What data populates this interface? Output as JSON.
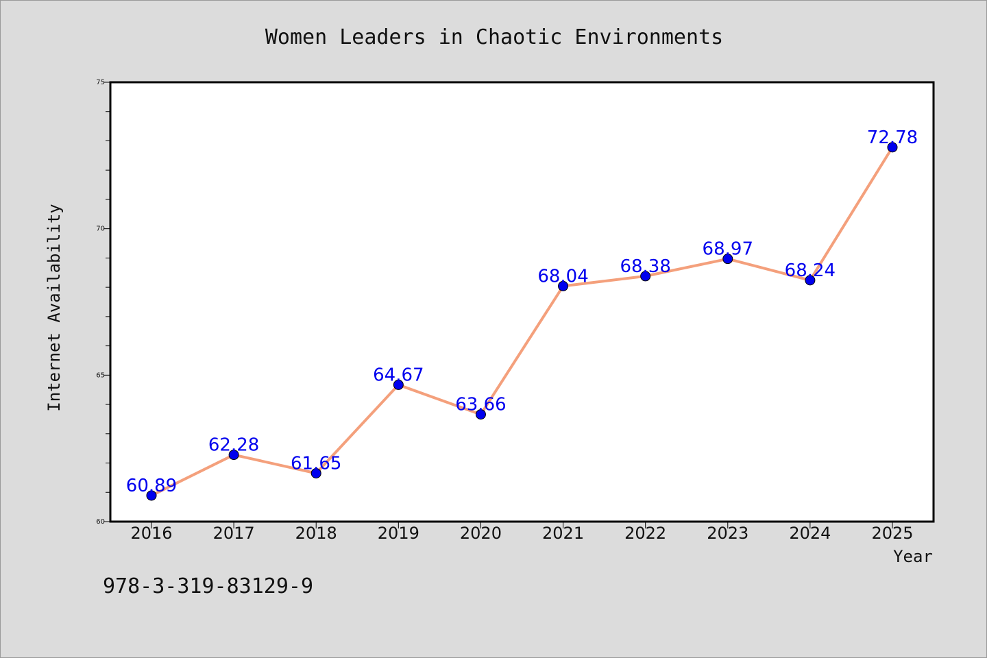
{
  "chart_data": {
    "type": "line",
    "title": "Women Leaders in Chaotic Environments",
    "xlabel": "Year",
    "ylabel": "Internet Availability",
    "categories": [
      "2016",
      "2017",
      "2018",
      "2019",
      "2020",
      "2021",
      "2022",
      "2023",
      "2024",
      "2025"
    ],
    "series": [
      {
        "values": [
          60.89,
          62.28,
          61.65,
          64.67,
          63.66,
          68.04,
          68.38,
          68.97,
          68.24,
          72.78
        ]
      }
    ],
    "data_labels": [
      "60.89",
      "62.28",
      "61.65",
      "64.67",
      "63.66",
      "68.04",
      "68.38",
      "68.97",
      "68.24",
      "72.78"
    ],
    "ylim": [
      60,
      75
    ],
    "y_ticks": [
      "60",
      "65",
      "70",
      "75"
    ],
    "grid": false,
    "legend": "none",
    "colors": {
      "line": "#f4a07c",
      "marker": "#0000ee",
      "data_label": "#0000ee",
      "plot_background": "#ffffff",
      "figure_background": "#dcdcdc"
    }
  },
  "footer": {
    "code": "978-3-319-83129-9"
  }
}
